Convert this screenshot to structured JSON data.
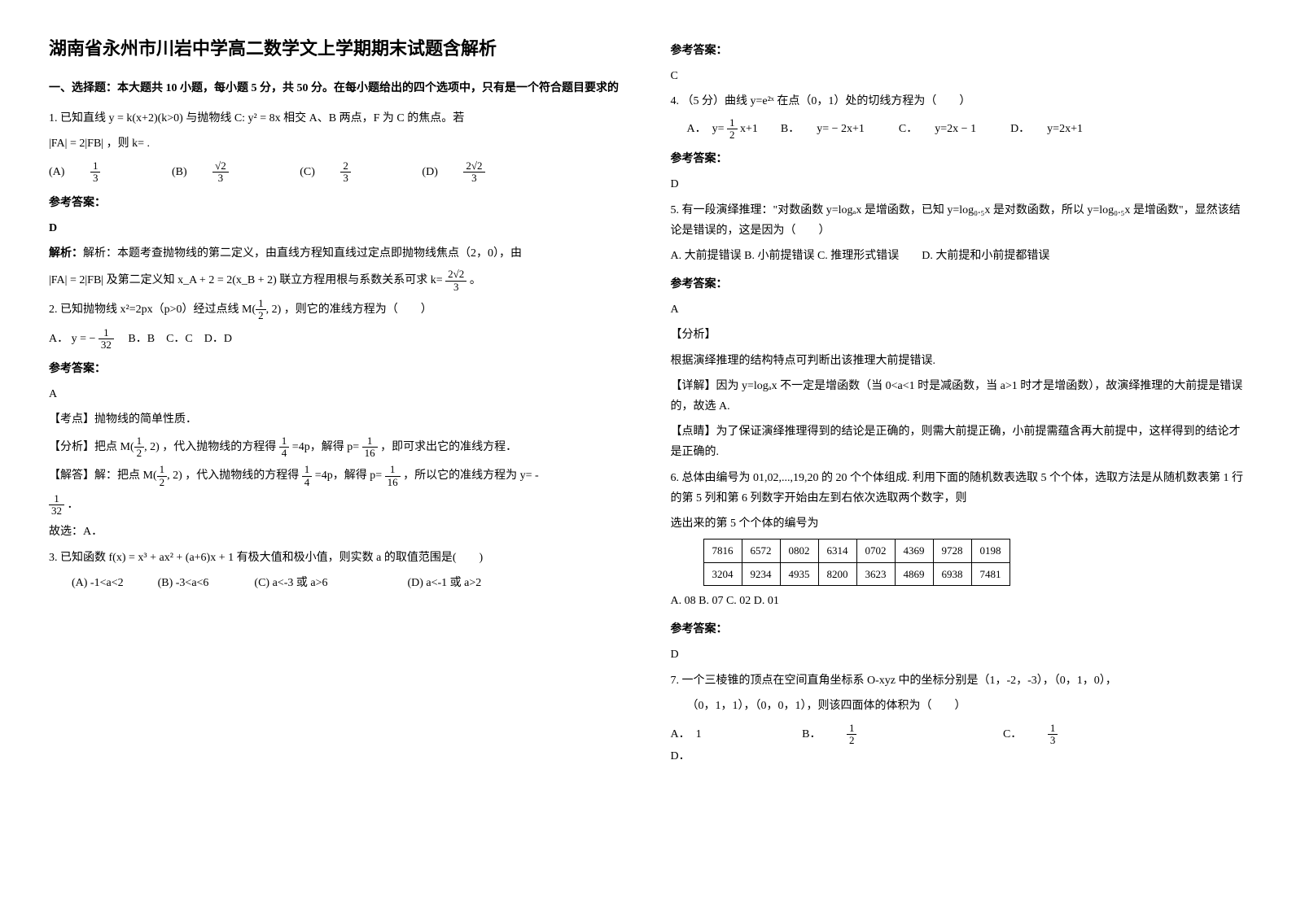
{
  "title": "湖南省永州市川岩中学高二数学文上学期期末试题含解析",
  "section1_head": "一、选择题：本大题共 10 小题，每小题 5 分，共 50 分。在每小题给出的四个选项中，只有是一个符合题目要求的",
  "q1": {
    "stem_a": "1. 已知直线 y = k(x+2)(k>0) 与抛物线 C: y² = 8x 相交 A、B 两点，F 为 C 的焦点。若",
    "stem_b": "|FA| = 2|FB| ，则 k= .",
    "opts": {
      "a": "(A)",
      "b": "(B)",
      "c": "(C)",
      "d": "(D)"
    },
    "ans_label": "参考答案：",
    "ans": "D",
    "expl_a": "解析：本题考查抛物线的第二定义，由直线方程知直线过定点即抛物线焦点（2，0），由",
    "expl_b": "|FA| = 2|FB| 及第二定义知 x_A + 2 = 2(x_B + 2) 联立方程用根与系数关系可求 k=",
    "expl_c": "。"
  },
  "q2": {
    "stem_a": "2. 已知抛物线 x²=2px（p>0）经过点线",
    "stem_b": "，则它的准线方程为（　　）",
    "opts_a": "A．",
    "opts_rest": "　B．B　C．C　D．D",
    "ans_label": "参考答案：",
    "ans": "A",
    "kd": "【考点】抛物线的简单性质．",
    "fx_a": "【分析】把点",
    "fx_b": "，代入抛物线的方程得",
    "fx_c": "=4p，解得 p=",
    "fx_d": "，即可求出它的准线方程．",
    "jd_a": "【解答】解：把点",
    "jd_b": "，代入抛物线的方程得",
    "jd_c": "=4p，解得 p=",
    "jd_d": "，所以它的准线方程为 y= -",
    "jd_e": "．",
    "gx": "故选：A．"
  },
  "q3": {
    "stem": "3. 已知函数 f(x) = x³ + ax² + (a+6)x + 1 有极大值和极小值，则实数 a 的取值范围是(　　)",
    "opts": "　　(A) -1<a<2　　　(B) -3<a<6　　　　(C) a<-3 或 a>6　　　　　　　(D) a<-1 或 a>2",
    "ans_label": "参考答案：",
    "ans": "C"
  },
  "q4": {
    "stem": "4. （5 分）曲线 y=e²ˣ 在点（0，1）处的切线方程为（　　）",
    "opts_a": "A．　y=",
    "opts_b": "x+1　　B．　　y= − 2x+1　　　C．　　y=2x − 1　　　D．　　y=2x+1",
    "ans_label": "参考答案：",
    "ans": "D"
  },
  "q5": {
    "stem_a": "5. 有一段演绎推理：\"对数函数 y=logₐx 是增函数，已知 y=log₀.₅x 是对数函数，所以 y=log₀.₅x 是增函数\"，显然该结论是错误的，这是因为（　　）",
    "opts": "A. 大前提错误 B. 小前提错误 C. 推理形式错误　　D. 大前提和小前提都错误",
    "ans_label": "参考答案：",
    "ans": "A",
    "fx_h": "【分析】",
    "fx": "根据演绎推理的结构特点可判断出该推理大前提错误.",
    "xj": "【详解】因为 y=logₐx 不一定是增函数（当 0<a<1 时是减函数，当 a>1 时才是增函数），故演绎推理的大前提是错误的，故选 A.",
    "dj": "【点睛】为了保证演绎推理得到的结论是正确的，则需大前提正确，小前提需蕴含再大前提中，这样得到的结论才是正确的."
  },
  "q6": {
    "stem_a": "6. 总体由编号为 01,02,...,19,20 的 20 个个体组成. 利用下面的随机数表选取 5 个个体，选取方法是从随机数表第 1 行的第 5 列和第 6 列数字开始由左到右依次选取两个数字，则",
    "stem_b": " 选出来的第 5 个个体的编号为",
    "table": {
      "r1": [
        "7816",
        "6572",
        "0802",
        "6314",
        "0702",
        "4369",
        "9728",
        "0198"
      ],
      "r2": [
        "3204",
        "9234",
        "4935",
        "8200",
        "3623",
        "4869",
        "6938",
        "7481"
      ]
    },
    "opts": "A. 08 B. 07  C. 02  D. 01",
    "ans_label": "参考答案：",
    "ans": "D"
  },
  "q7": {
    "stem_a": "7. 一个三棱锥的顶点在空间直角坐标系 O-xyz 中的坐标分别是（1，-2，-3），（0，1，0），",
    "stem_b": "（0，1，1），（0，0，1），则该四面体的体积为（　　）",
    "opts_a": "A．　1",
    "opts_b": "B．",
    "opts_c": "C．",
    "opts_d": "D．"
  },
  "ans_label_generic": "参考答案："
}
